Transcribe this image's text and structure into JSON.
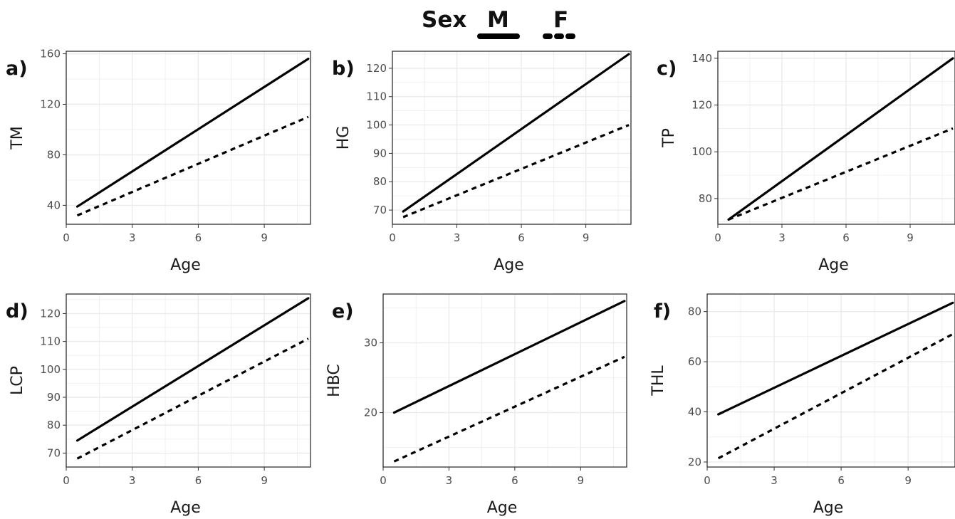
{
  "legend": {
    "title": "Sex",
    "entries": [
      {
        "label": "M",
        "linestyle": "solid"
      },
      {
        "label": "F",
        "linestyle": "dotted"
      }
    ]
  },
  "colors": {
    "line": "#000000",
    "grid": "#ebebeb",
    "panel_border": "#333333",
    "tick_text": "#4d4d4d"
  },
  "chart_data": [
    {
      "panel_label": "a)",
      "type": "line",
      "xlabel": "Age",
      "ylabel": "TM",
      "xlim": [
        0,
        11.1
      ],
      "ylim": [
        25,
        162
      ],
      "xticks": [
        0,
        3,
        6,
        9
      ],
      "yticks": [
        40,
        80,
        120,
        160
      ],
      "grid": true,
      "series": [
        {
          "name": "M",
          "x": [
            0.5,
            11
          ],
          "y": [
            39,
            156
          ]
        },
        {
          "name": "F",
          "x": [
            0.5,
            11
          ],
          "y": [
            32,
            110
          ]
        }
      ]
    },
    {
      "panel_label": "b)",
      "type": "line",
      "xlabel": "Age",
      "ylabel": "HG",
      "xlim": [
        0,
        11.1
      ],
      "ylim": [
        65,
        126
      ],
      "xticks": [
        0,
        3,
        6,
        9
      ],
      "yticks": [
        70,
        80,
        90,
        100,
        110,
        120
      ],
      "grid": true,
      "series": [
        {
          "name": "M",
          "x": [
            0.5,
            11
          ],
          "y": [
            69.5,
            125
          ]
        },
        {
          "name": "F",
          "x": [
            0.5,
            11
          ],
          "y": [
            67.5,
            100
          ]
        }
      ]
    },
    {
      "panel_label": "c)",
      "type": "line",
      "xlabel": "Age",
      "ylabel": "TP",
      "xlim": [
        0,
        11.1
      ],
      "ylim": [
        69,
        143
      ],
      "xticks": [
        0,
        3,
        6,
        9
      ],
      "yticks": [
        80,
        100,
        120,
        140
      ],
      "grid": true,
      "series": [
        {
          "name": "M",
          "x": [
            0.5,
            11
          ],
          "y": [
            71,
            140
          ]
        },
        {
          "name": "F",
          "x": [
            0.5,
            11
          ],
          "y": [
            71,
            110
          ]
        }
      ]
    },
    {
      "panel_label": "d)",
      "type": "line",
      "xlabel": "Age",
      "ylabel": "LCP",
      "xlim": [
        0,
        11.1
      ],
      "ylim": [
        65,
        127
      ],
      "xticks": [
        0,
        3,
        6,
        9
      ],
      "yticks": [
        70,
        80,
        90,
        100,
        110,
        120
      ],
      "grid": true,
      "series": [
        {
          "name": "M",
          "x": [
            0.5,
            11
          ],
          "y": [
            74.5,
            125.5
          ]
        },
        {
          "name": "F",
          "x": [
            0.5,
            11
          ],
          "y": [
            68,
            111
          ]
        }
      ]
    },
    {
      "panel_label": "e)",
      "type": "line",
      "xlabel": "Age",
      "ylabel": "HBC",
      "xlim": [
        0,
        11.1
      ],
      "ylim": [
        12.2,
        37
      ],
      "xticks": [
        0,
        3,
        6,
        9
      ],
      "yticks": [
        20,
        30
      ],
      "grid": true,
      "series": [
        {
          "name": "M",
          "x": [
            0.5,
            11
          ],
          "y": [
            20,
            36
          ]
        },
        {
          "name": "F",
          "x": [
            0.5,
            11
          ],
          "y": [
            13,
            28
          ]
        }
      ]
    },
    {
      "panel_label": "f)",
      "type": "line",
      "xlabel": "Age",
      "ylabel": "THL",
      "xlim": [
        0,
        11.1
      ],
      "ylim": [
        18,
        87
      ],
      "xticks": [
        0,
        3,
        6,
        9
      ],
      "yticks": [
        20,
        40,
        60,
        80
      ],
      "grid": true,
      "series": [
        {
          "name": "M",
          "x": [
            0.5,
            11
          ],
          "y": [
            39,
            83.5
          ]
        },
        {
          "name": "F",
          "x": [
            0.5,
            11
          ],
          "y": [
            21.5,
            71
          ]
        }
      ]
    }
  ]
}
